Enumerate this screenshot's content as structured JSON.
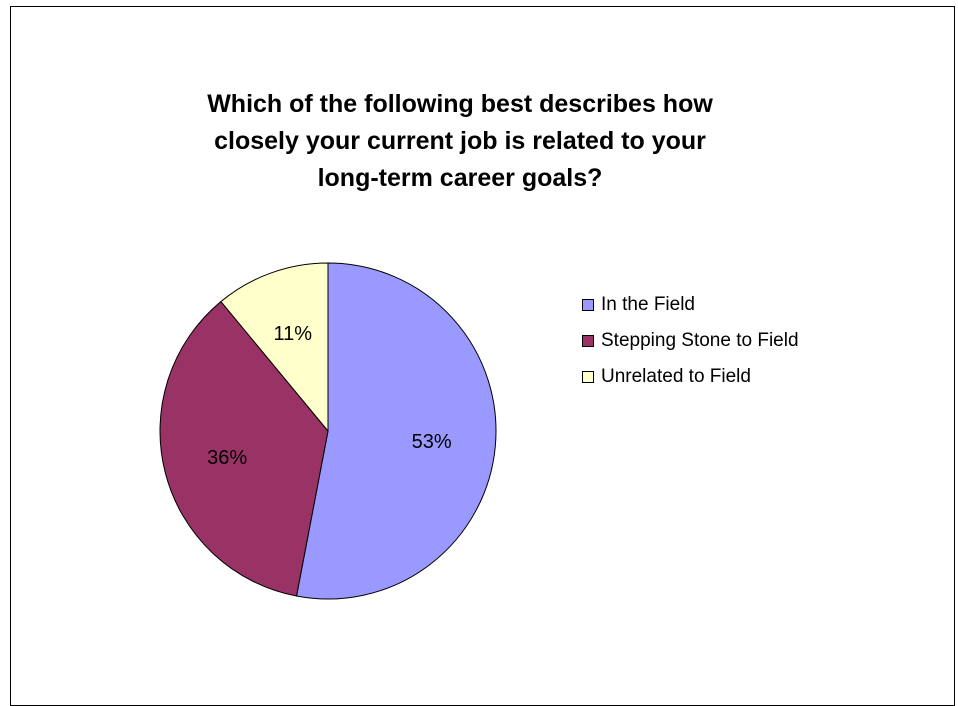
{
  "chart_data": {
    "type": "pie",
    "title": [
      "Which of the following best describes how",
      "closely your current job is related to your",
      "long-term career goals?"
    ],
    "slices": [
      {
        "label": "In the Field",
        "value": 53,
        "value_label": "53%",
        "color": "#9999ff"
      },
      {
        "label": "Stepping Stone to Field",
        "value": 36,
        "value_label": "36%",
        "color": "#993366"
      },
      {
        "label": "Unrelated to Field",
        "value": 11,
        "value_label": "11%",
        "color": "#ffffcc"
      }
    ],
    "legend_position": "right"
  }
}
